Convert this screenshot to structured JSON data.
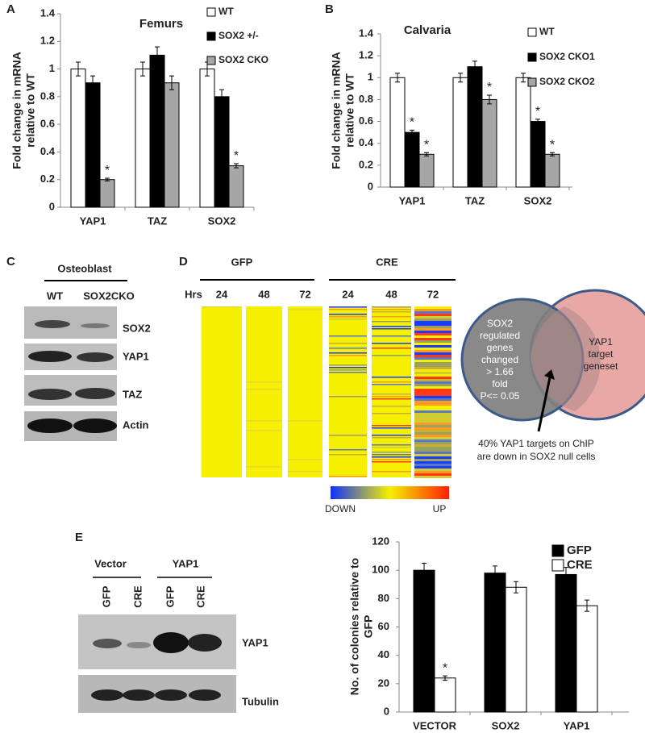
{
  "panels": [
    "A",
    "B",
    "C",
    "D",
    "E"
  ],
  "chart_data": [
    {
      "type": "bar",
      "title": "Femurs",
      "ylabel": [
        "Fold change in mRNA",
        "relative to WT"
      ],
      "categories": [
        "YAP1",
        "TAZ",
        "SOX2"
      ],
      "ylim": [
        0,
        1.4
      ],
      "yticks": [
        0,
        0.2,
        0.4,
        0.6,
        0.8,
        1,
        1.2,
        1.4
      ],
      "series": [
        {
          "name": "WT",
          "color": "#ffffff",
          "values": [
            1,
            1,
            1
          ],
          "errors": [
            0.05,
            0.05,
            0.05
          ],
          "significance": [
            null,
            null,
            null
          ]
        },
        {
          "name": "SOX2 +/-",
          "color": "#000000",
          "values": [
            0.9,
            1.1,
            0.8
          ],
          "errors": [
            0.05,
            0.06,
            0.05
          ],
          "significance": [
            null,
            null,
            null
          ]
        },
        {
          "name": "SOX2 CKO",
          "color": "#a6a6a6",
          "values": [
            0.2,
            0.9,
            0.3
          ],
          "errors": [
            0.01,
            0.05,
            0.015
          ],
          "significance": [
            "*",
            null,
            "*"
          ]
        }
      ]
    },
    {
      "type": "bar",
      "title": "Calvaria",
      "ylabel": [
        "Fold change in mRNA",
        "relative to WT"
      ],
      "categories": [
        "YAP1",
        "TAZ",
        "SOX2"
      ],
      "ylim": [
        0,
        1.4
      ],
      "yticks": [
        0,
        0.2,
        0.4,
        0.6,
        0.8,
        1,
        1.2,
        1.4
      ],
      "series": [
        {
          "name": "WT",
          "color": "#ffffff",
          "values": [
            1,
            1,
            1
          ],
          "errors": [
            0.04,
            0.04,
            0.04
          ],
          "significance": [
            null,
            null,
            null
          ]
        },
        {
          "name": "SOX2 CKO1",
          "color": "#000000",
          "values": [
            0.5,
            1.1,
            0.6
          ],
          "errors": [
            0.02,
            0.05,
            0.02
          ],
          "significance": [
            "*",
            null,
            "*"
          ]
        },
        {
          "name": "SOX2 CKO2",
          "color": "#a6a6a6",
          "values": [
            0.3,
            0.8,
            0.3
          ],
          "errors": [
            0.015,
            0.04,
            0.015
          ],
          "significance": [
            "*",
            "*",
            "*"
          ]
        }
      ]
    },
    {
      "type": "bar",
      "ylabel": [
        "No. of colonies relative to",
        "GFP"
      ],
      "categories": [
        "VECTOR",
        "SOX2",
        "YAP1"
      ],
      "ylim": [
        0,
        120
      ],
      "yticks": [
        0,
        20,
        40,
        60,
        80,
        100,
        120
      ],
      "series": [
        {
          "name": "GFP",
          "color": "#000000",
          "values": [
            100,
            98,
            97
          ],
          "errors": [
            5,
            5,
            5
          ],
          "significance": [
            null,
            null,
            null
          ]
        },
        {
          "name": "CRE",
          "color": "#ffffff",
          "values": [
            24,
            88,
            75
          ],
          "errors": [
            1.5,
            4,
            4
          ],
          "significance": [
            "*",
            null,
            null
          ]
        }
      ]
    }
  ],
  "blot_c": {
    "title": "Osteoblast",
    "lanes": [
      "WT",
      "SOX2CKO"
    ],
    "bands": [
      "SOX2",
      "YAP1",
      "TAZ",
      "Actin"
    ]
  },
  "heatmap": {
    "groups": [
      "GFP",
      "CRE"
    ],
    "time_label": "Hrs",
    "times": [
      "24",
      "48",
      "72",
      "24",
      "48",
      "72"
    ],
    "scale": [
      "DOWN",
      "UP"
    ]
  },
  "venn": {
    "left": [
      "SOX2",
      "regulated",
      "genes",
      "changed",
      "> 1.66",
      "fold",
      "P<= 0.05"
    ],
    "right": [
      "YAP1",
      "target",
      "geneset"
    ],
    "note": [
      "40% YAP1 targets on ChIP",
      "are down in SOX2 null  cells"
    ]
  },
  "blot_e": {
    "groups": [
      "Vector",
      "YAP1"
    ],
    "lanes": [
      "GFP",
      "CRE",
      "GFP",
      "CRE"
    ],
    "bands": [
      "YAP1",
      "Tubulin"
    ]
  }
}
